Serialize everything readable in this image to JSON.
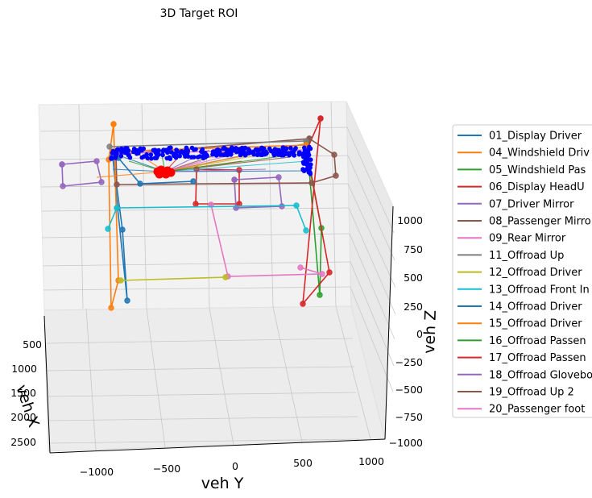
{
  "chart_data": {
    "type": "line",
    "projection": "3d",
    "title": "3D Target ROI",
    "xlabel": "veh X",
    "ylabel": "veh Y",
    "zlabel": "veh Z",
    "x_ticks": [
      "500",
      "1000",
      "1500",
      "2000",
      "2500"
    ],
    "y_ticks": [
      "−1000",
      "−500",
      "0",
      "500",
      "1000"
    ],
    "z_ticks": [
      "1000",
      "750",
      "500",
      "250",
      "0",
      "−250",
      "−500",
      "−750",
      "−1000"
    ],
    "xlim": [
      300,
      2600
    ],
    "ylim": [
      -1300,
      1100
    ],
    "zlim": [
      -1000,
      1100
    ],
    "grid": true,
    "legend_position": "right",
    "legend": [
      {
        "label": "01_Display Driver",
        "color": "#1f77b4"
      },
      {
        "label": "04_Windshield Driv",
        "color": "#ff7f0e"
      },
      {
        "label": "05_Windshield Pas",
        "color": "#2ca02c"
      },
      {
        "label": "06_Display HeadU",
        "color": "#d62728"
      },
      {
        "label": "07_Driver Mirror",
        "color": "#9467bd"
      },
      {
        "label": "08_Passenger Mirro",
        "color": "#8c564b"
      },
      {
        "label": "09_Rear Mirror",
        "color": "#e377c2"
      },
      {
        "label": "11_Offroad Up",
        "color": "#7f7f7f"
      },
      {
        "label": "12_Offroad Driver",
        "color": "#bcbd22"
      },
      {
        "label": "13_Offroad Front In",
        "color": "#17becf"
      },
      {
        "label": "14_Offroad Driver",
        "color": "#1f77b4"
      },
      {
        "label": "15_Offroad Driver",
        "color": "#ff7f0e"
      },
      {
        "label": "16_Offroad Passen",
        "color": "#2ca02c"
      },
      {
        "label": "17_Offroad Passen",
        "color": "#d62728"
      },
      {
        "label": "18_Offroad Glovebo",
        "color": "#9467bd"
      },
      {
        "label": "19_Offroad Up 2",
        "color": "#8c564b"
      },
      {
        "label": "20_Passenger foot",
        "color": "#e377c2"
      }
    ],
    "gaze_points_color": "#0000ff",
    "eye_points_color": "#ff0000"
  }
}
